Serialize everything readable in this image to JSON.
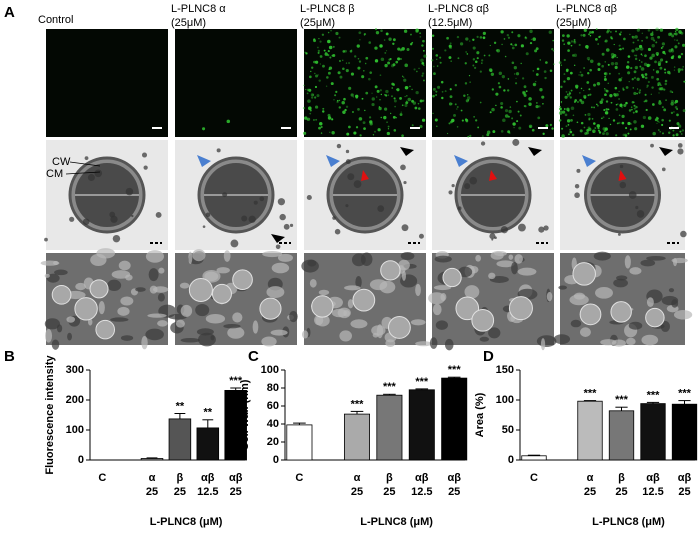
{
  "figure": {
    "panel": "A",
    "columns": [
      {
        "title": [
          "Control"
        ]
      },
      {
        "title": [
          "L-PLNC8 α",
          "(25μM)"
        ]
      },
      {
        "title": [
          "L-PLNC8 β",
          "(25μM)"
        ]
      },
      {
        "title": [
          "L-PLNC8 αβ",
          "(12.5μM)"
        ]
      },
      {
        "title": [
          "L-PLNC8 αβ",
          "(25μM)"
        ]
      }
    ],
    "labels": [
      "CW",
      "CM"
    ]
  },
  "chart_data": [
    {
      "type": "bar",
      "panel": "B",
      "ylabel": "Fluorescence intensity",
      "xlabel": "L-PLNC8 (μM)",
      "categories": [
        "C",
        "α",
        "β",
        "αβ",
        "αβ"
      ],
      "doses": [
        null,
        "25",
        "25",
        "12.5",
        "25"
      ],
      "values": [
        0,
        5,
        137,
        107,
        232
      ],
      "errors": [
        0,
        2,
        18,
        27,
        8
      ],
      "significance": [
        null,
        null,
        "**",
        "**",
        "***"
      ],
      "colors": [
        "#ffffff",
        "#999999",
        "#555555",
        "#111111",
        "#000000"
      ],
      "ylim": [
        0,
        300
      ],
      "yticks": [
        0,
        100,
        200,
        300
      ]
    },
    {
      "type": "bar",
      "panel": "C",
      "ylabel": "Cell wall (nm)",
      "xlabel": "L-PLNC8 (μM)",
      "categories": [
        "C",
        "α",
        "β",
        "αβ",
        "αβ"
      ],
      "doses": [
        null,
        "25",
        "25",
        "12.5",
        "25"
      ],
      "values": [
        39,
        51,
        72,
        78,
        91
      ],
      "errors": [
        2,
        3,
        1,
        1,
        1
      ],
      "significance": [
        null,
        "***",
        "***",
        "***",
        "***"
      ],
      "colors": [
        "#ffffff",
        "#aaaaaa",
        "#777777",
        "#111111",
        "#000000"
      ],
      "ylim": [
        0,
        100
      ],
      "yticks": [
        0,
        20,
        40,
        60,
        80,
        100
      ]
    },
    {
      "type": "bar",
      "panel": "D",
      "ylabel": "Area (%)",
      "xlabel": "L-PLNC8 (μM)",
      "categories": [
        "C",
        "α",
        "β",
        "αβ",
        "αβ"
      ],
      "doses": [
        null,
        "25",
        "25",
        "12.5",
        "25"
      ],
      "values": [
        7,
        98,
        82,
        94,
        93
      ],
      "errors": [
        1,
        1,
        6,
        2,
        6
      ],
      "significance": [
        null,
        "***",
        "***",
        "***",
        "***"
      ],
      "colors": [
        "#ffffff",
        "#bbbbbb",
        "#777777",
        "#111111",
        "#000000"
      ],
      "ylim": [
        0,
        150
      ],
      "yticks": [
        0,
        50,
        100,
        150
      ]
    }
  ]
}
